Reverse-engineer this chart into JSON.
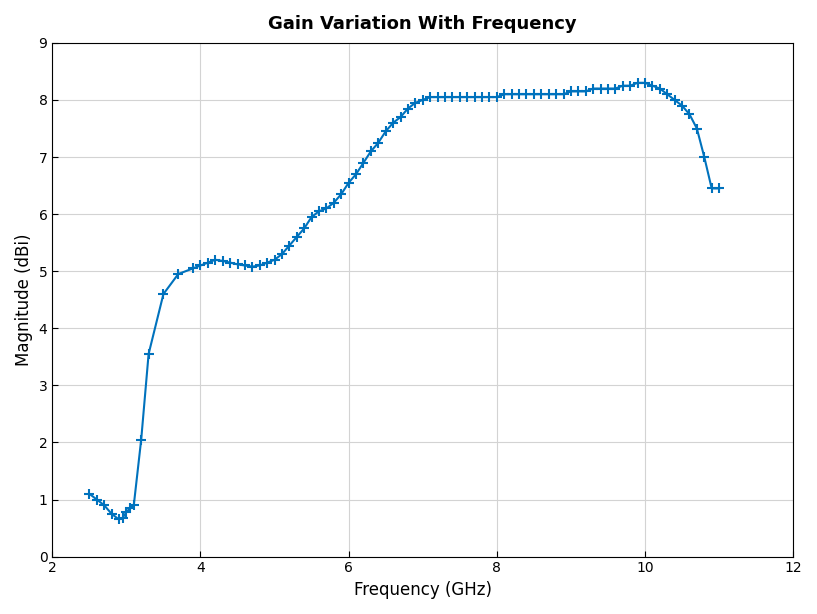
{
  "title": "Gain Variation With Frequency",
  "xlabel": "Frequency (GHz)",
  "ylabel": "Magnitude (dBi)",
  "xlim": [
    2,
    12
  ],
  "ylim": [
    0,
    9
  ],
  "xticks": [
    2,
    4,
    6,
    8,
    10,
    12
  ],
  "yticks": [
    0,
    1,
    2,
    3,
    4,
    5,
    6,
    7,
    8,
    9
  ],
  "line_color": "#0072BD",
  "marker": "+",
  "markersize": 7,
  "markeredgewidth": 1.5,
  "linewidth": 1.5,
  "x": [
    2.5,
    2.6,
    2.7,
    2.8,
    2.9,
    2.95,
    3.0,
    3.05,
    3.1,
    3.2,
    3.3,
    3.5,
    3.7,
    3.9,
    4.0,
    4.1,
    4.2,
    4.3,
    4.4,
    4.5,
    4.6,
    4.7,
    4.8,
    4.9,
    5.0,
    5.1,
    5.2,
    5.3,
    5.4,
    5.5,
    5.6,
    5.7,
    5.8,
    5.9,
    6.0,
    6.1,
    6.2,
    6.3,
    6.4,
    6.5,
    6.6,
    6.7,
    6.8,
    6.9,
    7.0,
    7.1,
    7.2,
    7.3,
    7.4,
    7.5,
    7.6,
    7.7,
    7.8,
    7.9,
    8.0,
    8.1,
    8.2,
    8.3,
    8.4,
    8.5,
    8.6,
    8.7,
    8.8,
    8.9,
    9.0,
    9.1,
    9.2,
    9.3,
    9.4,
    9.5,
    9.6,
    9.7,
    9.8,
    9.9,
    10.0,
    10.1,
    10.2,
    10.3,
    10.4,
    10.5,
    10.6,
    10.7,
    10.8,
    10.9,
    11.0
  ],
  "y": [
    1.1,
    1.0,
    0.9,
    0.75,
    0.65,
    0.68,
    0.78,
    0.85,
    0.9,
    2.05,
    3.55,
    4.6,
    4.95,
    5.05,
    5.1,
    5.15,
    5.2,
    5.18,
    5.15,
    5.12,
    5.1,
    5.08,
    5.1,
    5.15,
    5.2,
    5.3,
    5.45,
    5.6,
    5.75,
    5.95,
    6.05,
    6.1,
    6.2,
    6.35,
    6.55,
    6.7,
    6.9,
    7.1,
    7.25,
    7.45,
    7.6,
    7.7,
    7.85,
    7.95,
    8.0,
    8.05,
    8.05,
    8.05,
    8.05,
    8.05,
    8.05,
    8.05,
    8.05,
    8.05,
    8.05,
    8.1,
    8.1,
    8.1,
    8.1,
    8.1,
    8.1,
    8.1,
    8.1,
    8.1,
    8.15,
    8.15,
    8.15,
    8.2,
    8.2,
    8.2,
    8.2,
    8.25,
    8.25,
    8.3,
    8.3,
    8.25,
    8.2,
    8.1,
    8.0,
    7.9,
    7.75,
    7.5,
    7.0,
    6.45,
    6.45
  ],
  "grid_color": "#d3d3d3",
  "background_color": "#ffffff",
  "title_fontsize": 13,
  "label_fontsize": 12
}
